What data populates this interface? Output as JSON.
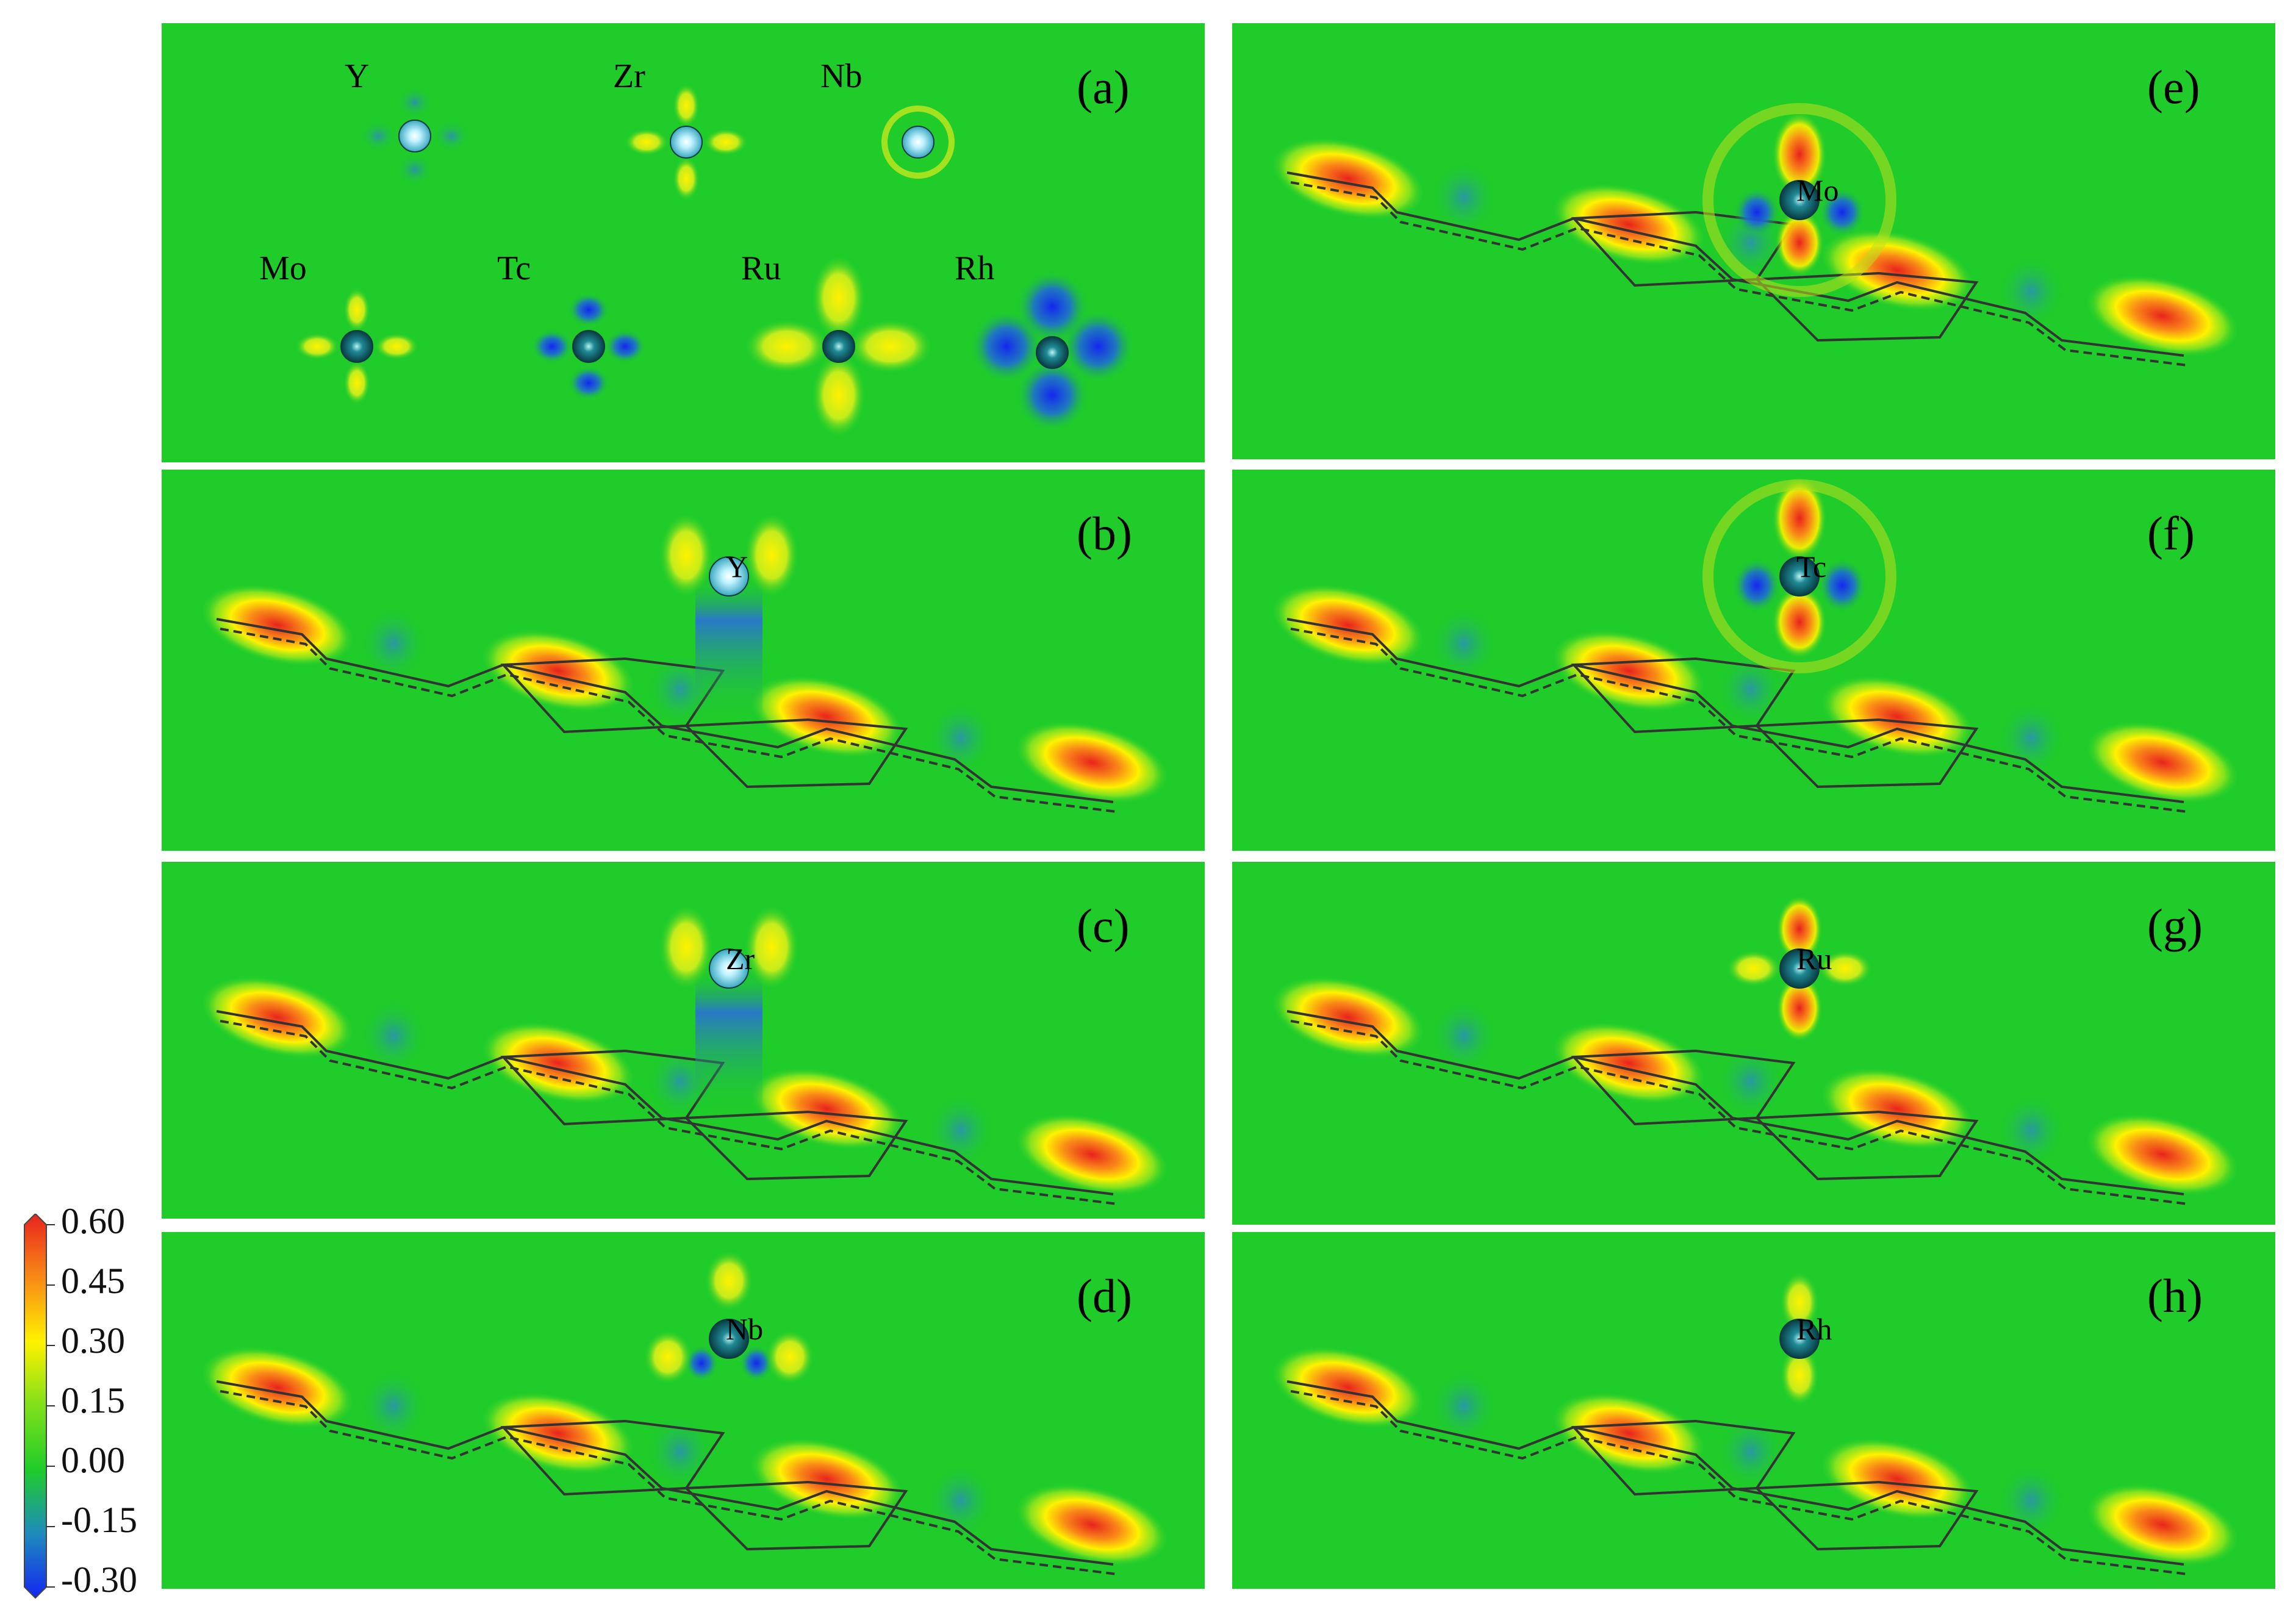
{
  "panels": [
    {
      "id": "a",
      "label": "(a)",
      "kind": "atoms",
      "atoms": [
        {
          "symbol": "Y",
          "light": true,
          "lobes": "none"
        },
        {
          "symbol": "Zr",
          "light": true,
          "lobes": "weak"
        },
        {
          "symbol": "Nb",
          "light": true,
          "lobes": "ring"
        },
        {
          "symbol": "Mo",
          "light": false,
          "lobes": "weak"
        },
        {
          "symbol": "Tc",
          "light": false,
          "lobes": "weak-blue"
        },
        {
          "symbol": "Ru",
          "light": false,
          "lobes": "yellow"
        },
        {
          "symbol": "Rh",
          "light": false,
          "lobes": "blue"
        }
      ]
    },
    {
      "id": "b",
      "label": "(b)",
      "kind": "chain",
      "metal": "Y",
      "light": true,
      "pattern": "blue-column"
    },
    {
      "id": "c",
      "label": "(c)",
      "kind": "chain",
      "metal": "Zr",
      "light": true,
      "pattern": "blue-column"
    },
    {
      "id": "d",
      "label": "(d)",
      "kind": "chain",
      "metal": "Nb",
      "light": false,
      "pattern": "mixed"
    },
    {
      "id": "e",
      "label": "(e)",
      "kind": "chain",
      "metal": "Mo",
      "light": false,
      "pattern": "cross-blue"
    },
    {
      "id": "f",
      "label": "(f)",
      "kind": "chain",
      "metal": "Tc",
      "light": false,
      "pattern": "cross-red"
    },
    {
      "id": "g",
      "label": "(g)",
      "kind": "chain",
      "metal": "Ru",
      "light": false,
      "pattern": "cross-yellow"
    },
    {
      "id": "h",
      "label": "(h)",
      "kind": "chain",
      "metal": "Rh",
      "light": false,
      "pattern": "vertical-yellow"
    }
  ],
  "colorbar": {
    "ticks": [
      "0.60",
      "0.45",
      "0.30",
      "0.15",
      "0.00",
      "-0.15",
      "-0.30"
    ],
    "min": -0.3,
    "max": 0.6,
    "colors": [
      "#e8231c",
      "#f98a17",
      "#fff200",
      "#7fe01a",
      "#1fcc2a",
      "#1e8bbd",
      "#1327f0"
    ]
  }
}
